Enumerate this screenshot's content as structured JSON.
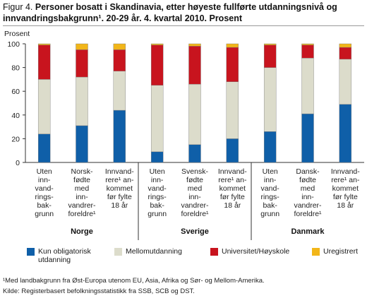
{
  "figure_prefix": "Figur 4.",
  "figure_title": "Personer bosatt i Skandinavia, etter høyeste fullførte utdanningsnivå og innvandringsbakgrunn¹. 20-29 år. 4. kvartal 2010. Prosent",
  "chart_data": {
    "type": "bar",
    "stacked": true,
    "ylabel": "Prosent",
    "ylim": [
      0,
      100
    ],
    "yticks": [
      0,
      20,
      40,
      60,
      80,
      100
    ],
    "grid": false,
    "legend_position": "bottom",
    "groups": [
      "Norge",
      "Sverige",
      "Danmark"
    ],
    "categories": [
      [
        "Uten",
        "inn-",
        "vand-",
        "rings-",
        "bak-",
        "grunn"
      ],
      [
        "Norsk-",
        "fødte",
        "med",
        "inn-",
        "vandrer-",
        "foreldre¹"
      ],
      [
        "Innvand-",
        "rere¹ an-",
        "kommet",
        "før fylte",
        "18 år"
      ],
      [
        "Uten",
        "inn-",
        "vand-",
        "rings-",
        "bak-",
        "grunn"
      ],
      [
        "Svensk-",
        "fødte",
        "med",
        "inn-",
        "vandrer-",
        "foreldre¹"
      ],
      [
        "Innvand-",
        "rere¹ an-",
        "kommet",
        "før fylte",
        "18 år"
      ],
      [
        "Uten",
        "inn-",
        "vand-",
        "rings-",
        "bak-",
        "grunn"
      ],
      [
        "Dansk-",
        "fødte",
        "med",
        "inn-",
        "vandrer-",
        "foreldre¹"
      ],
      [
        "Innvand-",
        "rere¹ an-",
        "kommet",
        "før fylte",
        "18 år"
      ]
    ],
    "series": [
      {
        "name": "Kun obligatorisk utdanning",
        "color": "#0f5fa8",
        "values": [
          24,
          31,
          44,
          9,
          15,
          20,
          26,
          41,
          49
        ]
      },
      {
        "name": "Mellomutdanning",
        "color": "#dcdccb",
        "values": [
          46,
          41,
          33,
          56,
          51,
          48,
          54,
          47,
          38
        ]
      },
      {
        "name": "Universitet/Høyskole",
        "color": "#c8141e",
        "values": [
          29,
          23,
          18,
          34,
          32,
          29,
          19,
          11,
          10
        ]
      },
      {
        "name": "Uregistrert",
        "color": "#f2b619",
        "values": [
          1,
          5,
          5,
          1,
          2,
          3,
          1,
          1,
          3
        ]
      }
    ]
  },
  "footnotes": [
    "¹Med landbakgrunn fra Øst-Europa utenom EU, Asia, Afrika og Sør- og Mellom-Amerika.",
    "Kilde: Registerbasert befolkningsstatistikk fra SSB, SCB og DST."
  ]
}
